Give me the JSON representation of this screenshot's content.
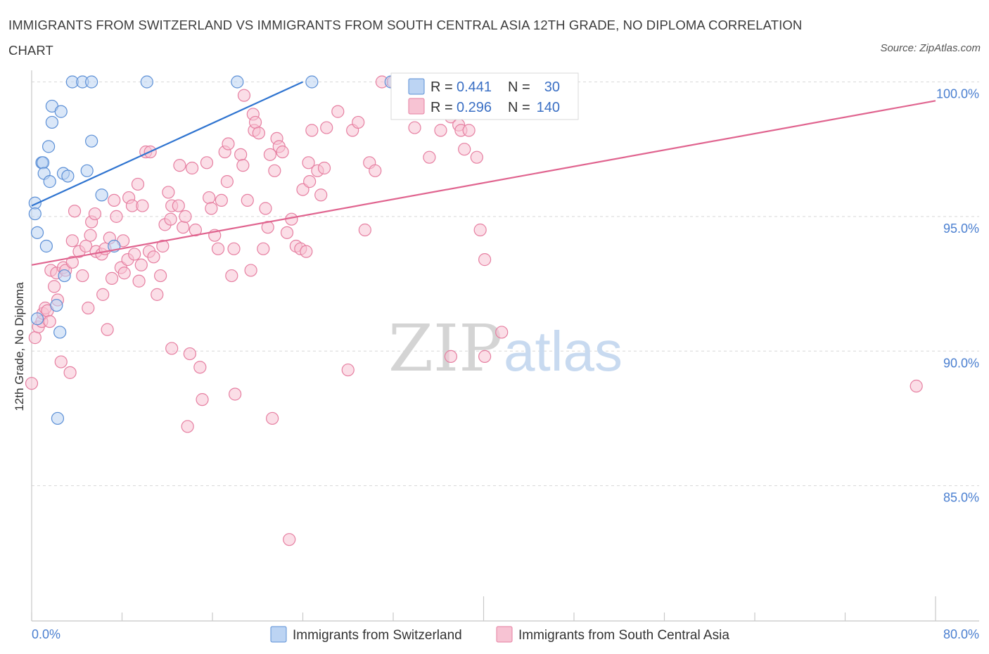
{
  "title": "IMMIGRANTS FROM SWITZERLAND VS IMMIGRANTS FROM SOUTH CENTRAL ASIA 12TH GRADE, NO DIPLOMA CORRELATION CHART",
  "source": "Source: ZipAtlas.com",
  "watermark": {
    "zip": "ZIP",
    "atlas": "atlas"
  },
  "colors": {
    "blue_fill": "#bcd4f3",
    "blue_stroke": "#5b8fd6",
    "blue_line": "#2f74d0",
    "pink_fill": "#f7c3d3",
    "pink_stroke": "#e67fa1",
    "pink_line": "#e0648f",
    "axis_text": "#4a7fd0",
    "grid": "#d8d8d8"
  },
  "legend": {
    "rows": [
      {
        "r_label": "R = ",
        "r_value": "0.441",
        "n_label": "N = ",
        "n_value": "30"
      },
      {
        "r_label": "R = ",
        "r_value": "0.296",
        "n_label": "N = ",
        "n_value": "140"
      }
    ]
  },
  "chart_data": {
    "type": "scatter",
    "title": "IMMIGRANTS FROM SWITZERLAND VS IMMIGRANTS FROM SOUTH CENTRAL ASIA 12TH GRADE, NO DIPLOMA CORRELATION CHART",
    "xlabel": "",
    "ylabel": "12th Grade, No Diploma",
    "xlim": [
      0,
      80
    ],
    "ylim": [
      80.0,
      101.0
    ],
    "x_tick_labels": [
      "0.0%",
      "80.0%"
    ],
    "y_ticks": [
      85.0,
      90.0,
      95.0,
      100.0
    ],
    "y_tick_labels": [
      "85.0%",
      "90.0%",
      "95.0%",
      "100.0%"
    ],
    "grid": true,
    "legend_position": "top-center",
    "series": [
      {
        "name": "Immigrants from Switzerland",
        "color": "#5b8fd6",
        "R": 0.441,
        "N": 30,
        "trend": {
          "x": [
            0.0,
            24.0
          ],
          "y": [
            95.4,
            100.0
          ]
        },
        "points": [
          [
            0.3,
            95.5
          ],
          [
            0.3,
            95.1
          ],
          [
            0.5,
            94.4
          ],
          [
            1.3,
            93.9
          ],
          [
            0.9,
            97.0
          ],
          [
            1.0,
            97.0
          ],
          [
            1.1,
            96.6
          ],
          [
            1.6,
            96.3
          ],
          [
            1.8,
            98.5
          ],
          [
            1.8,
            99.1
          ],
          [
            2.6,
            98.9
          ],
          [
            1.5,
            97.6
          ],
          [
            2.8,
            96.6
          ],
          [
            3.2,
            96.5
          ],
          [
            4.9,
            96.7
          ],
          [
            5.3,
            97.8
          ],
          [
            3.6,
            100.0
          ],
          [
            4.5,
            100.0
          ],
          [
            5.3,
            100.0
          ],
          [
            10.2,
            100.0
          ],
          [
            18.2,
            100.0
          ],
          [
            24.8,
            100.0
          ],
          [
            31.8,
            100.0
          ],
          [
            6.2,
            95.8
          ],
          [
            7.3,
            93.9
          ],
          [
            2.9,
            92.8
          ],
          [
            2.2,
            91.7
          ],
          [
            0.5,
            91.2
          ],
          [
            2.5,
            90.7
          ],
          [
            2.3,
            87.5
          ]
        ]
      },
      {
        "name": "Immigrants from South Central Asia",
        "color": "#e67fa1",
        "R": 0.296,
        "N": 140,
        "trend": {
          "x": [
            0.0,
            80.0
          ],
          "y": [
            93.2,
            99.3
          ]
        },
        "points": [
          [
            0.0,
            88.8
          ],
          [
            0.3,
            90.5
          ],
          [
            0.6,
            90.9
          ],
          [
            0.9,
            91.1
          ],
          [
            1.0,
            91.4
          ],
          [
            1.2,
            91.6
          ],
          [
            1.4,
            91.5
          ],
          [
            1.6,
            91.1
          ],
          [
            1.7,
            93.0
          ],
          [
            2.0,
            92.4
          ],
          [
            2.2,
            92.9
          ],
          [
            2.3,
            91.9
          ],
          [
            2.6,
            89.6
          ],
          [
            2.8,
            93.1
          ],
          [
            3.0,
            93.0
          ],
          [
            3.4,
            89.2
          ],
          [
            3.6,
            93.3
          ],
          [
            3.6,
            94.1
          ],
          [
            3.8,
            95.2
          ],
          [
            4.2,
            93.7
          ],
          [
            4.5,
            92.8
          ],
          [
            4.8,
            93.9
          ],
          [
            5.0,
            91.6
          ],
          [
            5.2,
            94.3
          ],
          [
            5.3,
            94.8
          ],
          [
            5.6,
            95.1
          ],
          [
            5.7,
            93.7
          ],
          [
            6.2,
            93.6
          ],
          [
            6.3,
            92.1
          ],
          [
            6.5,
            93.8
          ],
          [
            6.7,
            90.8
          ],
          [
            6.9,
            94.2
          ],
          [
            7.1,
            92.7
          ],
          [
            7.3,
            95.6
          ],
          [
            7.5,
            95.0
          ],
          [
            7.9,
            93.1
          ],
          [
            8.1,
            94.1
          ],
          [
            8.2,
            92.9
          ],
          [
            8.5,
            93.4
          ],
          [
            8.6,
            95.7
          ],
          [
            8.9,
            95.4
          ],
          [
            9.1,
            93.6
          ],
          [
            9.4,
            96.2
          ],
          [
            9.5,
            92.6
          ],
          [
            9.7,
            93.2
          ],
          [
            9.8,
            95.4
          ],
          [
            10.1,
            97.4
          ],
          [
            10.4,
            93.7
          ],
          [
            10.5,
            97.4
          ],
          [
            10.8,
            93.5
          ],
          [
            11.1,
            92.1
          ],
          [
            11.4,
            92.8
          ],
          [
            11.6,
            93.9
          ],
          [
            11.8,
            94.7
          ],
          [
            12.1,
            95.9
          ],
          [
            12.3,
            94.9
          ],
          [
            12.4,
            95.4
          ],
          [
            12.4,
            90.1
          ],
          [
            13.0,
            95.4
          ],
          [
            13.1,
            96.9
          ],
          [
            13.4,
            94.6
          ],
          [
            13.6,
            95.0
          ],
          [
            13.8,
            87.2
          ],
          [
            14.0,
            89.9
          ],
          [
            14.2,
            96.8
          ],
          [
            14.5,
            94.5
          ],
          [
            14.9,
            89.4
          ],
          [
            15.1,
            88.2
          ],
          [
            15.5,
            97.0
          ],
          [
            15.7,
            95.7
          ],
          [
            15.9,
            95.3
          ],
          [
            16.2,
            94.3
          ],
          [
            16.5,
            93.8
          ],
          [
            16.8,
            95.6
          ],
          [
            17.1,
            97.4
          ],
          [
            17.3,
            96.3
          ],
          [
            17.4,
            97.7
          ],
          [
            17.7,
            92.8
          ],
          [
            17.9,
            93.8
          ],
          [
            18.0,
            88.4
          ],
          [
            18.5,
            97.3
          ],
          [
            18.7,
            96.9
          ],
          [
            18.8,
            99.5
          ],
          [
            19.1,
            95.6
          ],
          [
            19.4,
            93.0
          ],
          [
            19.6,
            98.8
          ],
          [
            19.7,
            98.2
          ],
          [
            19.8,
            98.5
          ],
          [
            20.1,
            98.1
          ],
          [
            20.5,
            93.8
          ],
          [
            20.7,
            95.3
          ],
          [
            20.9,
            94.6
          ],
          [
            21.1,
            97.3
          ],
          [
            21.3,
            87.5
          ],
          [
            21.5,
            96.7
          ],
          [
            21.7,
            97.9
          ],
          [
            21.9,
            97.6
          ],
          [
            22.2,
            97.4
          ],
          [
            22.6,
            94.4
          ],
          [
            23.0,
            94.9
          ],
          [
            23.4,
            93.9
          ],
          [
            23.8,
            93.8
          ],
          [
            24.0,
            96.0
          ],
          [
            24.3,
            93.7
          ],
          [
            24.5,
            97.0
          ],
          [
            24.6,
            96.3
          ],
          [
            24.8,
            98.2
          ],
          [
            25.3,
            96.7
          ],
          [
            25.6,
            95.8
          ],
          [
            25.9,
            96.8
          ],
          [
            26.1,
            98.3
          ],
          [
            27.1,
            98.9
          ],
          [
            28.0,
            89.3
          ],
          [
            28.4,
            98.2
          ],
          [
            28.9,
            98.5
          ],
          [
            29.5,
            94.5
          ],
          [
            29.9,
            97.0
          ],
          [
            30.4,
            96.7
          ],
          [
            31.0,
            100.0
          ],
          [
            32.0,
            100.0
          ],
          [
            33.2,
            100.0
          ],
          [
            33.9,
            98.3
          ],
          [
            34.3,
            99.2
          ],
          [
            35.2,
            97.2
          ],
          [
            36.2,
            98.2
          ],
          [
            37.1,
            98.7
          ],
          [
            37.8,
            98.4
          ],
          [
            38.0,
            98.2
          ],
          [
            38.3,
            97.5
          ],
          [
            38.7,
            98.2
          ],
          [
            39.4,
            97.2
          ],
          [
            39.7,
            94.5
          ],
          [
            40.1,
            93.4
          ],
          [
            37.1,
            89.8
          ],
          [
            40.1,
            89.8
          ],
          [
            41.6,
            90.7
          ],
          [
            78.3,
            88.7
          ],
          [
            22.8,
            83.0
          ]
        ]
      }
    ]
  },
  "bottom_legend": [
    {
      "label": "Immigrants from Switzerland",
      "color": "#bcd4f3"
    },
    {
      "label": "Immigrants from South Central Asia",
      "color": "#f7c3d3"
    }
  ]
}
